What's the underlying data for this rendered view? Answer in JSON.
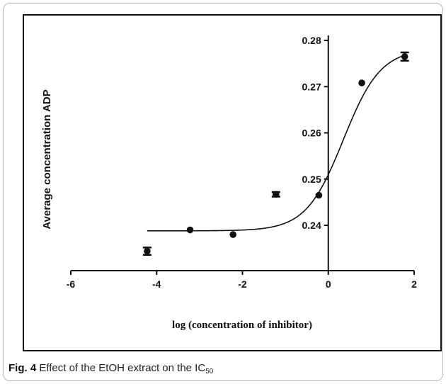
{
  "figure": {
    "label": "Fig. 4",
    "caption_text": "Effect of the EtOH extract on the IC",
    "caption_subscript": "50"
  },
  "chart_data": {
    "type": "scatter",
    "xlabel": "log (concentration of inhibitor)",
    "ylabel": "Average concentration ADP",
    "xlim": [
      -6,
      2
    ],
    "ylim": [
      0.23,
      0.28
    ],
    "xticks": [
      -6,
      -4,
      -2,
      0,
      2
    ],
    "yticks": [
      0.24,
      0.25,
      0.26,
      0.27,
      0.28
    ],
    "xtick_labels": [
      "-6",
      "-4",
      "-2",
      "0",
      "2"
    ],
    "ytick_labels": [
      "0.24",
      "0.25",
      "0.26",
      "0.27",
      "0.28"
    ],
    "grid": false,
    "points": [
      {
        "x": -4.22,
        "y": 0.2344,
        "err": 0.0008
      },
      {
        "x": -3.22,
        "y": 0.239,
        "err": 0
      },
      {
        "x": -2.22,
        "y": 0.238,
        "err": 0
      },
      {
        "x": -1.22,
        "y": 0.2467,
        "err": 0.0005
      },
      {
        "x": -0.22,
        "y": 0.2465,
        "err": 0
      },
      {
        "x": 0.78,
        "y": 0.2708,
        "err": 0
      },
      {
        "x": 1.78,
        "y": 0.2765,
        "err": 0.0009
      }
    ],
    "fit_curve": {
      "type": "sigmoid",
      "bottom": 0.2388,
      "top": 0.2782,
      "log_ec50": 0.35,
      "hill_slope": 1.0,
      "x_range": [
        -4.22,
        1.78
      ]
    },
    "colors": {
      "markers": "#111111",
      "curve": "#111111",
      "axes": "#111111"
    }
  }
}
